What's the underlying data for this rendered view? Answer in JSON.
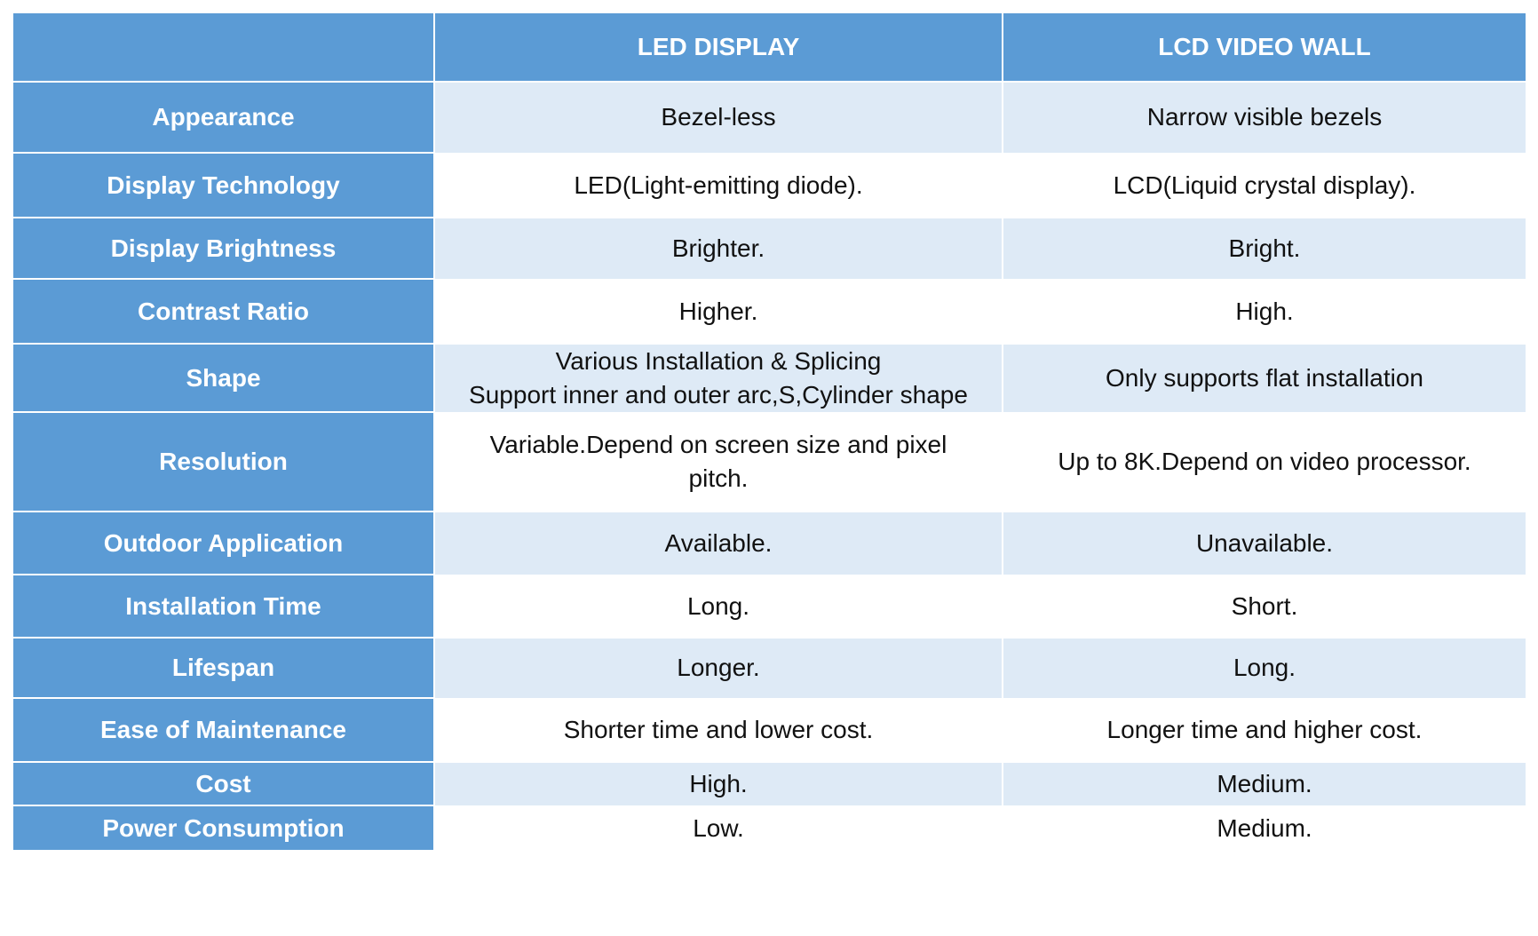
{
  "table": {
    "header": {
      "label": "",
      "led": "LED DISPLAY",
      "lcd": "LCD VIDEO  WALL"
    },
    "rows": [
      {
        "label": "Appearance",
        "led": "Bezel-less",
        "lcd": "Narrow visible bezels"
      },
      {
        "label": "Display Technology",
        "led": "LED(Light-emitting diode).",
        "lcd": "LCD(Liquid crystal display)."
      },
      {
        "label": "Display Brightness",
        "led": "Brighter.",
        "lcd": "Bright."
      },
      {
        "label": "Contrast Ratio",
        "led": "Higher.",
        "lcd": "High."
      },
      {
        "label": "Shape",
        "led": "Various Installation & Splicing",
        "led_line2": "Support inner and outer arc,S,Cylinder shape",
        "lcd": "Only supports flat installation"
      },
      {
        "label": "Resolution",
        "led": "Variable.Depend on screen size and pixel",
        "led_line2": "pitch.",
        "lcd": "Up to 8K.Depend on video processor."
      },
      {
        "label": "Outdoor Application",
        "led": "Available.",
        "lcd": "Unavailable."
      },
      {
        "label": "Installation Time",
        "led": "Long.",
        "lcd": "Short."
      },
      {
        "label": "Lifespan",
        "led": "Longer.",
        "lcd": "Long."
      },
      {
        "label": "Ease of Maintenance",
        "led": "Shorter time and lower cost.",
        "lcd": "Longer time and higher cost."
      },
      {
        "label": "Cost",
        "led": "High.",
        "lcd": "Medium."
      },
      {
        "label": "Power Consumption",
        "led": "Low.",
        "lcd": "Medium."
      }
    ]
  },
  "colors": {
    "header_blue": "#5b9bd5",
    "shaded_row": "#deeaf6",
    "plain_row": "#ffffff",
    "header_text": "#ffffff",
    "body_text": "#111111"
  }
}
